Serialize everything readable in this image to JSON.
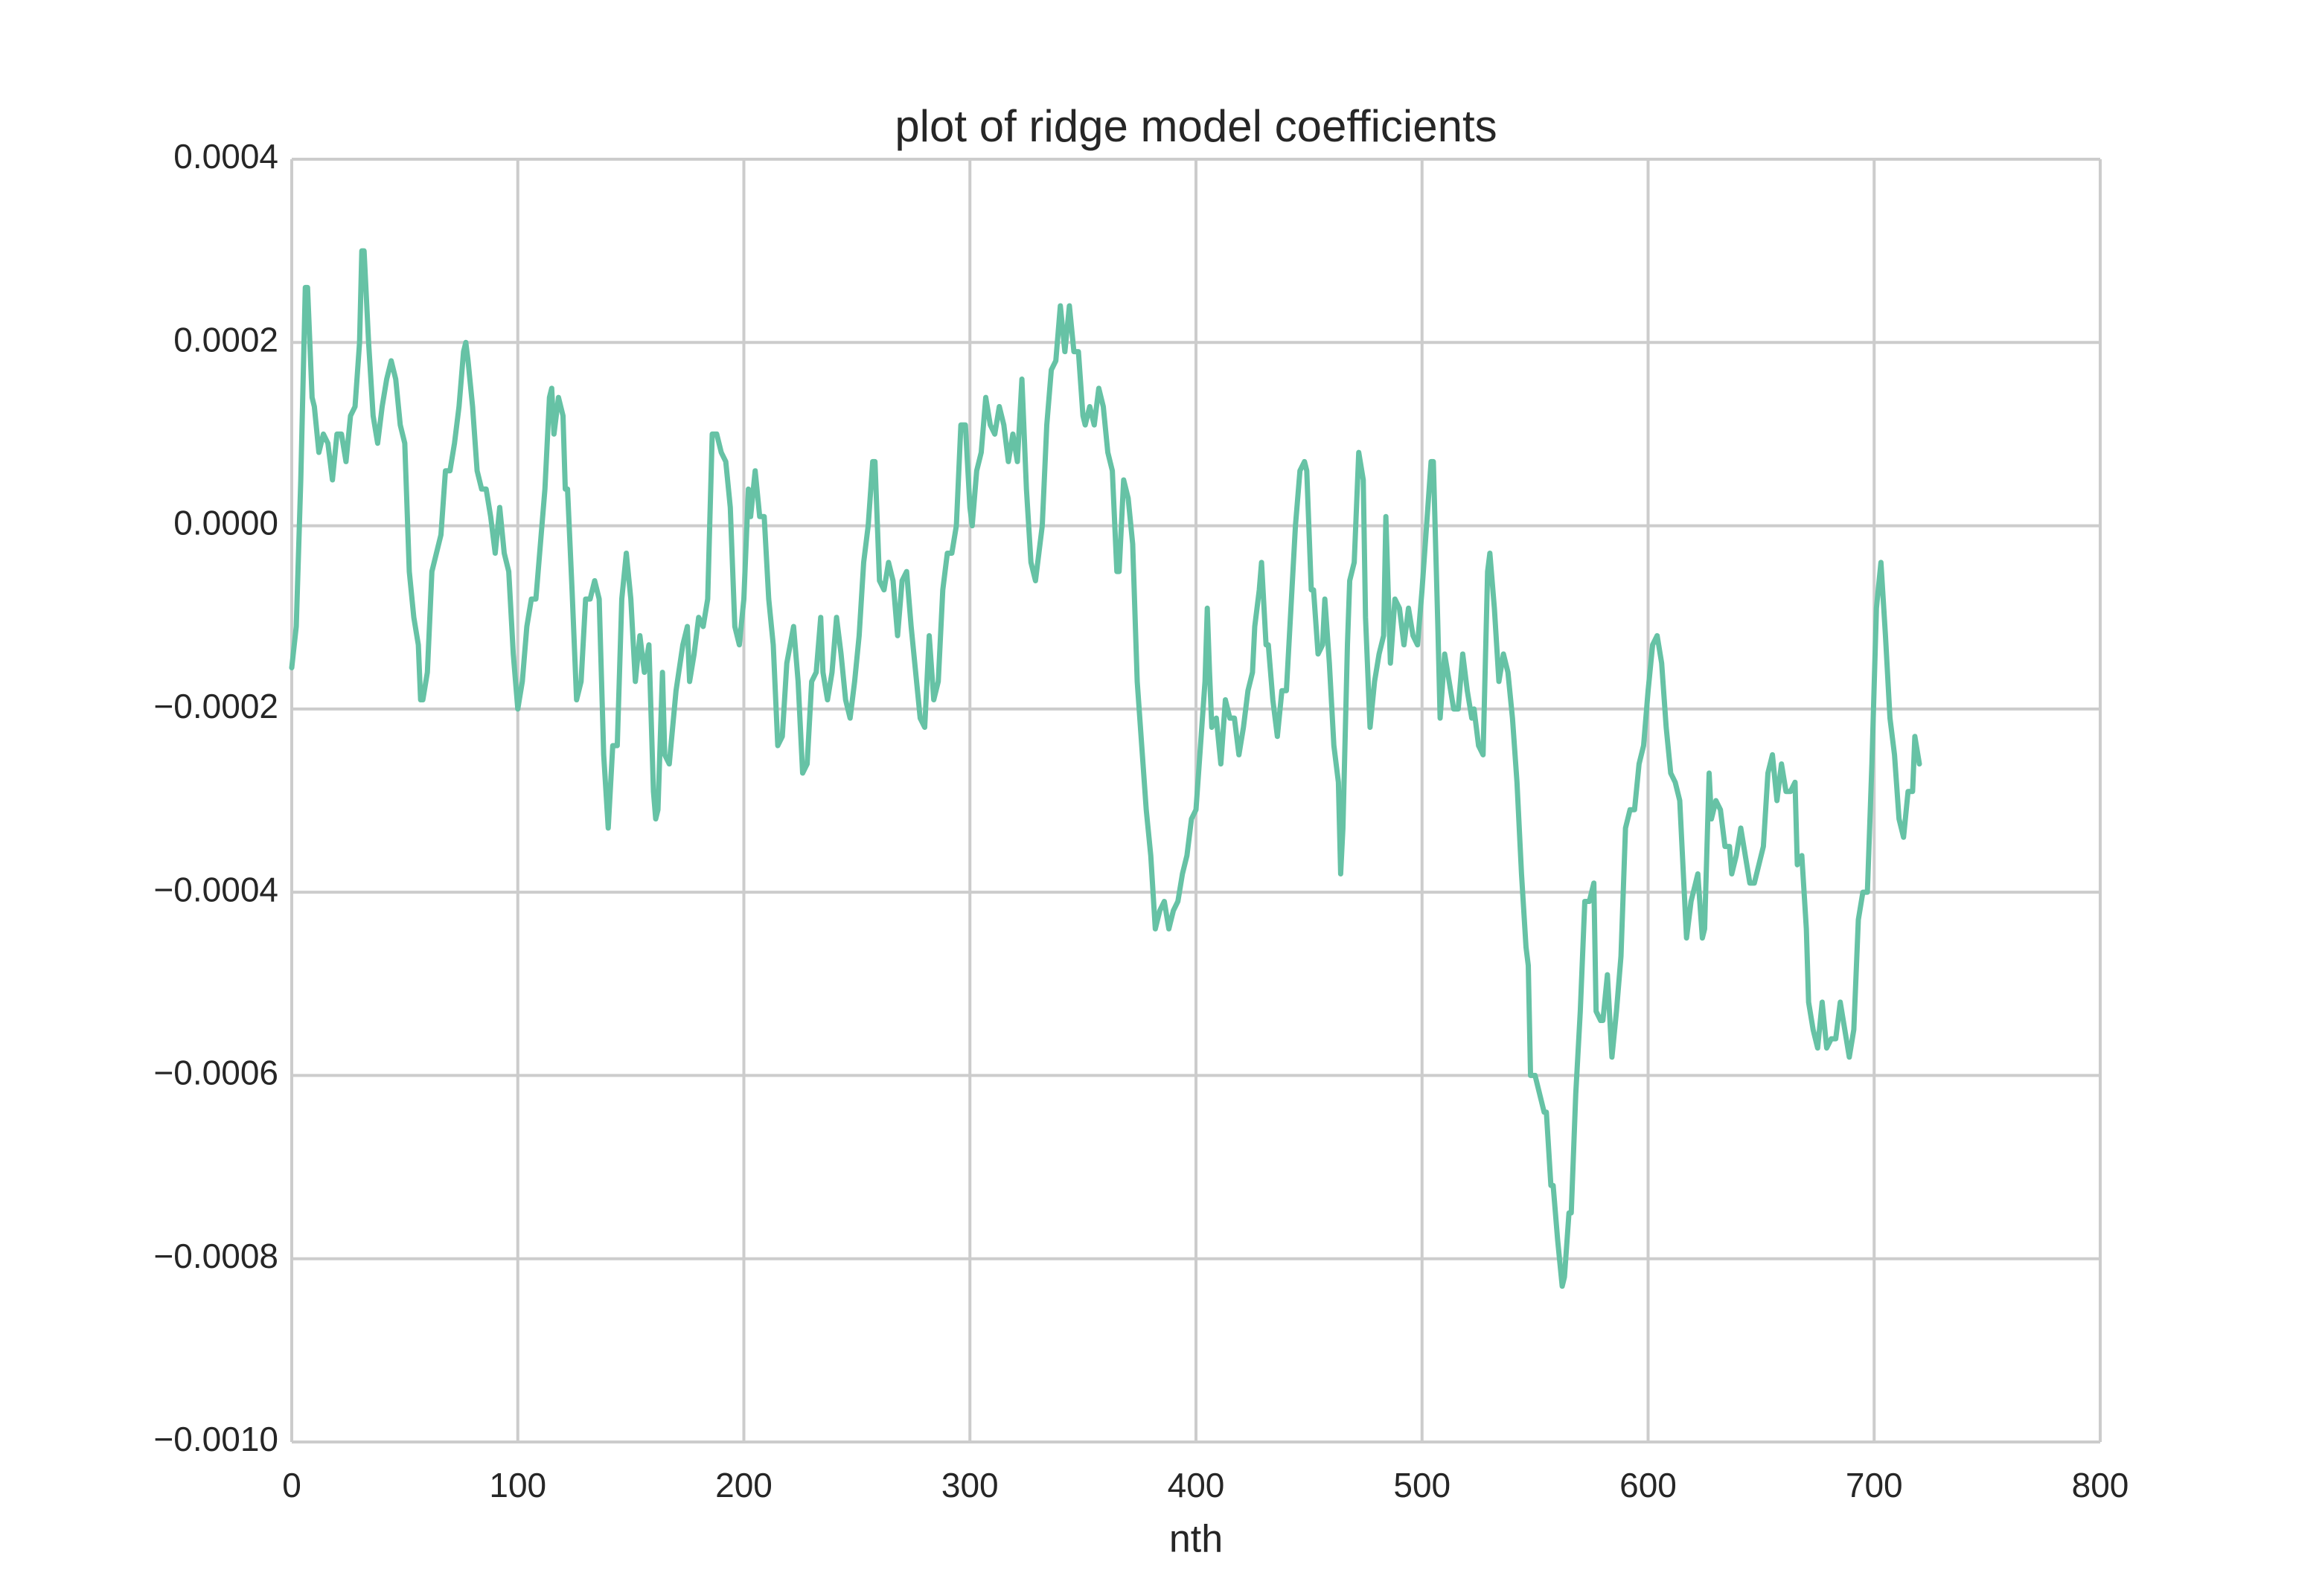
{
  "chart_data": {
    "type": "line",
    "title": "plot of ridge model coefficients",
    "x_label": "nth",
    "color": "#66c2a5",
    "grid": true,
    "xlim": [
      0,
      800
    ],
    "xticks": [
      0,
      100,
      200,
      300,
      400,
      500,
      600,
      700,
      800
    ],
    "ylim": [
      -0.001,
      0.0004
    ],
    "yticks": [
      {
        "value": -0.001,
        "label": "−0.0010"
      },
      {
        "value": -0.0008,
        "label": "−0.0008"
      },
      {
        "value": -0.0006,
        "label": "−0.0006"
      },
      {
        "value": -0.0004,
        "label": "−0.0004"
      },
      {
        "value": -0.0002,
        "label": "−0.0002"
      },
      {
        "value": 0,
        "label": "0.0000"
      },
      {
        "value": 0.0002,
        "label": "0.0002"
      },
      {
        "value": 0.0004,
        "label": "0.0004"
      }
    ],
    "x": [
      0,
      2,
      4,
      6,
      7,
      9,
      10,
      12,
      14,
      16,
      18,
      20,
      22,
      24,
      26,
      28,
      30,
      31,
      32,
      34,
      36,
      38,
      40,
      42,
      44,
      46,
      48,
      50,
      52,
      54,
      56,
      57,
      58,
      60,
      62,
      64,
      66,
      68,
      70,
      72,
      74,
      76,
      77,
      78,
      80,
      82,
      84,
      86,
      88,
      90,
      92,
      94,
      96,
      98,
      100,
      102,
      104,
      106,
      108,
      110,
      112,
      114,
      115,
      116,
      118,
      120,
      121,
      122,
      124,
      126,
      128,
      130,
      132,
      134,
      136,
      138,
      140,
      142,
      144,
      146,
      148,
      150,
      152,
      154,
      156,
      158,
      160,
      161,
      162,
      164,
      165,
      167,
      170,
      173,
      175,
      176,
      178,
      180,
      182,
      184,
      186,
      188,
      190,
      192,
      194,
      196,
      198,
      200,
      202,
      203,
      205,
      207,
      209,
      211,
      213,
      215,
      217,
      219,
      222,
      224,
      226,
      228,
      230,
      232,
      234,
      235,
      237,
      239,
      241,
      243,
      245,
      247,
      249,
      251,
      253,
      255,
      257,
      258,
      260,
      262,
      264,
      266,
      268,
      270,
      272,
      274,
      276,
      278,
      280,
      282,
      284,
      286,
      288,
      290,
      292,
      294,
      296,
      298,
      300,
      301,
      303,
      305,
      307,
      309,
      311,
      313,
      315,
      317,
      319,
      321,
      323,
      325,
      327,
      329,
      331,
      332,
      334,
      336,
      338,
      340,
      342,
      344,
      346,
      348,
      350,
      351,
      353,
      355,
      357,
      359,
      361,
      363,
      365,
      366,
      368,
      370,
      372,
      374,
      376,
      378,
      380,
      382,
      384,
      386,
      388,
      390,
      392,
      394,
      396,
      398,
      400,
      402,
      404,
      405,
      406,
      407,
      409,
      411,
      413,
      415,
      417,
      419,
      421,
      423,
      425,
      426,
      428,
      429,
      431,
      432,
      434,
      436,
      438,
      440,
      442,
      444,
      446,
      448,
      449,
      451,
      452,
      454,
      456,
      457,
      459,
      461,
      463,
      464,
      465,
      467,
      468,
      470,
      472,
      474,
      475,
      477,
      479,
      481,
      483,
      484,
      486,
      488,
      490,
      492,
      494,
      496,
      498,
      500,
      502,
      504,
      505,
      507,
      508,
      510,
      512,
      514,
      516,
      518,
      520,
      522,
      523,
      525,
      527,
      529,
      530,
      532,
      534,
      536,
      538,
      540,
      542,
      544,
      546,
      547,
      548,
      550,
      552,
      554,
      555,
      557,
      558,
      560,
      562,
      563,
      565,
      566,
      568,
      570,
      572,
      574,
      576,
      577,
      579,
      580,
      582,
      584,
      586,
      588,
      590,
      592,
      594,
      596,
      598,
      600,
      602,
      604,
      606,
      608,
      610,
      612,
      614,
      616,
      617,
      619,
      621,
      622,
      624,
      625,
      627,
      628,
      630,
      632,
      634,
      636,
      637,
      639,
      641,
      643,
      645,
      647,
      649,
      651,
      653,
      655,
      657,
      659,
      661,
      663,
      665,
      666,
      668,
      670,
      671,
      673,
      675,
      677,
      679,
      681,
      683,
      685,
      687,
      689,
      691,
      693,
      695,
      697,
      699,
      701,
      703,
      705,
      707,
      709,
      711,
      713,
      715,
      717,
      718,
      720
    ],
    "values": [
      -0.000155,
      -0.00011,
      5e-05,
      0.00026,
      0.00026,
      0.00014,
      0.00013,
      8e-05,
      0.0001,
      9e-05,
      5e-05,
      0.0001,
      0.0001,
      7e-05,
      0.00012,
      0.00013,
      0.0002,
      0.0003,
      0.0003,
      0.0002,
      0.00012,
      9e-05,
      0.00013,
      0.00016,
      0.00018,
      0.00016,
      0.00011,
      9e-05,
      -5e-05,
      -0.0001,
      -0.00013,
      -0.00019,
      -0.00019,
      -0.00016,
      -5e-05,
      -3e-05,
      -1e-05,
      6e-05,
      6e-05,
      9e-05,
      0.00013,
      0.00019,
      0.0002,
      0.00018,
      0.00013,
      6e-05,
      4e-05,
      4e-05,
      1e-05,
      -3e-05,
      2e-05,
      -3e-05,
      -5e-05,
      -0.00014,
      -0.0002,
      -0.00017,
      -0.00011,
      -8e-05,
      -8e-05,
      -2e-05,
      4e-05,
      0.00014,
      0.00015,
      0.0001,
      0.00014,
      0.00012,
      4e-05,
      4e-05,
      -7e-05,
      -0.00019,
      -0.00017,
      -8e-05,
      -8e-05,
      -6e-05,
      -8e-05,
      -0.00025,
      -0.00033,
      -0.00024,
      -0.00024,
      -8e-05,
      -3e-05,
      -8e-05,
      -0.00017,
      -0.00012,
      -0.00016,
      -0.00013,
      -0.00029,
      -0.00032,
      -0.00031,
      -0.00016,
      -0.00025,
      -0.00026,
      -0.00018,
      -0.00013,
      -0.00011,
      -0.00017,
      -0.00014,
      -0.0001,
      -0.00011,
      -8e-05,
      0.0001,
      0.0001,
      8e-05,
      7e-05,
      2e-05,
      -0.00011,
      -0.00013,
      -8e-05,
      4e-05,
      1e-05,
      6e-05,
      1e-05,
      1e-05,
      -8e-05,
      -0.00013,
      -0.00024,
      -0.00023,
      -0.00015,
      -0.00011,
      -0.00017,
      -0.00027,
      -0.00026,
      -0.00017,
      -0.00016,
      -0.0001,
      -0.00016,
      -0.00019,
      -0.00016,
      -0.0001,
      -0.00014,
      -0.00019,
      -0.00021,
      -0.00017,
      -0.00012,
      -4e-05,
      0,
      7e-05,
      7e-05,
      -6e-05,
      -7e-05,
      -4e-05,
      -6e-05,
      -0.00012,
      -6e-05,
      -5e-05,
      -0.00011,
      -0.00016,
      -0.00021,
      -0.00022,
      -0.00012,
      -0.00019,
      -0.00017,
      -7e-05,
      -3e-05,
      -3e-05,
      0,
      0.00011,
      0.00011,
      2e-05,
      0,
      6e-05,
      8e-05,
      0.00014,
      0.00011,
      0.0001,
      0.00013,
      0.00011,
      7e-05,
      0.0001,
      7e-05,
      0.00016,
      4e-05,
      -4e-05,
      -6e-05,
      -2e-05,
      0,
      0.00011,
      0.00017,
      0.00018,
      0.00024,
      0.00019,
      0.00024,
      0.00019,
      0.00019,
      0.00012,
      0.00011,
      0.00013,
      0.00011,
      0.00015,
      0.00013,
      8e-05,
      6e-05,
      -5e-05,
      -5e-05,
      5e-05,
      3e-05,
      -2e-05,
      -0.00017,
      -0.00024,
      -0.00031,
      -0.00036,
      -0.00044,
      -0.00042,
      -0.00041,
      -0.00044,
      -0.00042,
      -0.00041,
      -0.00038,
      -0.00036,
      -0.00032,
      -0.00031,
      -0.00024,
      -0.00017,
      -9e-05,
      -0.00016,
      -0.00022,
      -0.00021,
      -0.00026,
      -0.00019,
      -0.00021,
      -0.00021,
      -0.00025,
      -0.00022,
      -0.00018,
      -0.00016,
      -0.00011,
      -7e-05,
      -4e-05,
      -0.00013,
      -0.00013,
      -0.00019,
      -0.00023,
      -0.00018,
      -0.00018,
      -9e-05,
      0,
      6e-05,
      7e-05,
      6e-05,
      -7e-05,
      -7e-05,
      -0.00014,
      -0.00013,
      -8e-05,
      -0.00015,
      -0.00024,
      -0.00028,
      -0.00038,
      -0.00033,
      -0.00013,
      -6e-05,
      -4e-05,
      8e-05,
      5e-05,
      -0.0001,
      -0.00022,
      -0.00017,
      -0.00014,
      -0.00012,
      1e-05,
      -0.00015,
      -8e-05,
      -9e-05,
      -0.00013,
      -9e-05,
      -0.00012,
      -0.00013,
      -7e-05,
      0,
      7e-05,
      7e-05,
      -0.00011,
      -0.00021,
      -0.00014,
      -0.00017,
      -0.0002,
      -0.0002,
      -0.00014,
      -0.00018,
      -0.00021,
      -0.0002,
      -0.00024,
      -0.00025,
      -5e-05,
      -3e-05,
      -9e-05,
      -0.00017,
      -0.00014,
      -0.00016,
      -0.00021,
      -0.00028,
      -0.00038,
      -0.00046,
      -0.00048,
      -0.0006,
      -0.0006,
      -0.00062,
      -0.00064,
      -0.00064,
      -0.00072,
      -0.00072,
      -0.00078,
      -0.00083,
      -0.00082,
      -0.00075,
      -0.00075,
      -0.00062,
      -0.00053,
      -0.00041,
      -0.00041,
      -0.00039,
      -0.00053,
      -0.00054,
      -0.00054,
      -0.00049,
      -0.00058,
      -0.00053,
      -0.00047,
      -0.00033,
      -0.00031,
      -0.00031,
      -0.00026,
      -0.00024,
      -0.00018,
      -0.00013,
      -0.00012,
      -0.00015,
      -0.00022,
      -0.00027,
      -0.00028,
      -0.0003,
      -0.0004,
      -0.00045,
      -0.00041,
      -0.00039,
      -0.00038,
      -0.00045,
      -0.00044,
      -0.00027,
      -0.00032,
      -0.0003,
      -0.00031,
      -0.00035,
      -0.00035,
      -0.00038,
      -0.00036,
      -0.00033,
      -0.00036,
      -0.00039,
      -0.00039,
      -0.00037,
      -0.00035,
      -0.00027,
      -0.00025,
      -0.0003,
      -0.00026,
      -0.00029,
      -0.00029,
      -0.00028,
      -0.00037,
      -0.00036,
      -0.00044,
      -0.00052,
      -0.00055,
      -0.00057,
      -0.00052,
      -0.00057,
      -0.00056,
      -0.00056,
      -0.00052,
      -0.00055,
      -0.00058,
      -0.00055,
      -0.00043,
      -0.0004,
      -0.0004,
      -0.00026,
      -9e-05,
      -4e-05,
      -0.00012,
      -0.00021,
      -0.00025,
      -0.00032,
      -0.00034,
      -0.00029,
      -0.00029,
      -0.00023,
      -0.00026
    ]
  }
}
